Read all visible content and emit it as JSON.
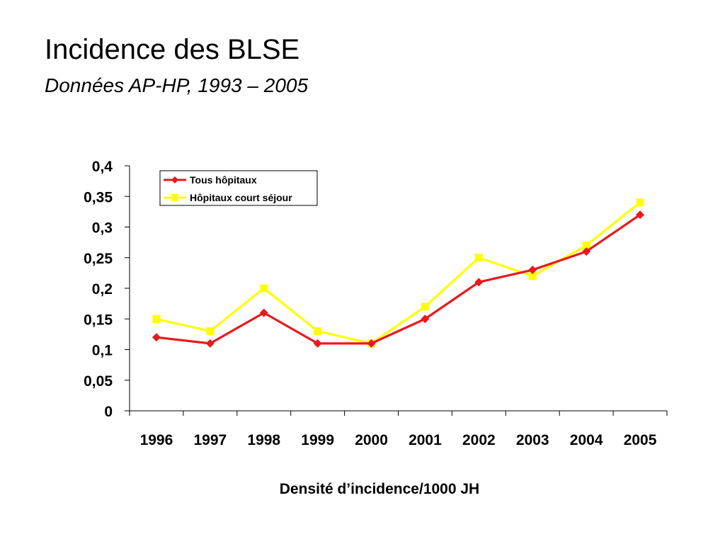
{
  "slide": {
    "title": "Incidence des BLSE",
    "subtitle": "Données AP-HP, 1993 – 2005"
  },
  "chart_data": {
    "type": "line",
    "categories": [
      "1996",
      "1997",
      "1998",
      "1999",
      "2000",
      "2001",
      "2002",
      "2003",
      "2004",
      "2005"
    ],
    "series": [
      {
        "name": "Tous hôpitaux",
        "color": "#e8191b",
        "marker": "diamond",
        "values": [
          0.12,
          0.11,
          0.16,
          0.11,
          0.11,
          0.15,
          0.21,
          0.23,
          0.26,
          0.32
        ]
      },
      {
        "name": "Hôpitaux court séjour",
        "color": "#ffff00",
        "marker": "square",
        "values": [
          0.15,
          0.13,
          0.2,
          0.13,
          0.11,
          0.17,
          0.25,
          0.22,
          0.27,
          0.34
        ]
      }
    ],
    "xlabel": "Densité d’incidence/1000 JH",
    "ylabel": "",
    "ylim": [
      0,
      0.4
    ],
    "yticks": [
      "0",
      "0,05",
      "0,1",
      "0,15",
      "0,2",
      "0,25",
      "0,3",
      "0,35",
      "0,4"
    ],
    "grid": false,
    "legend_position": "top-left"
  }
}
